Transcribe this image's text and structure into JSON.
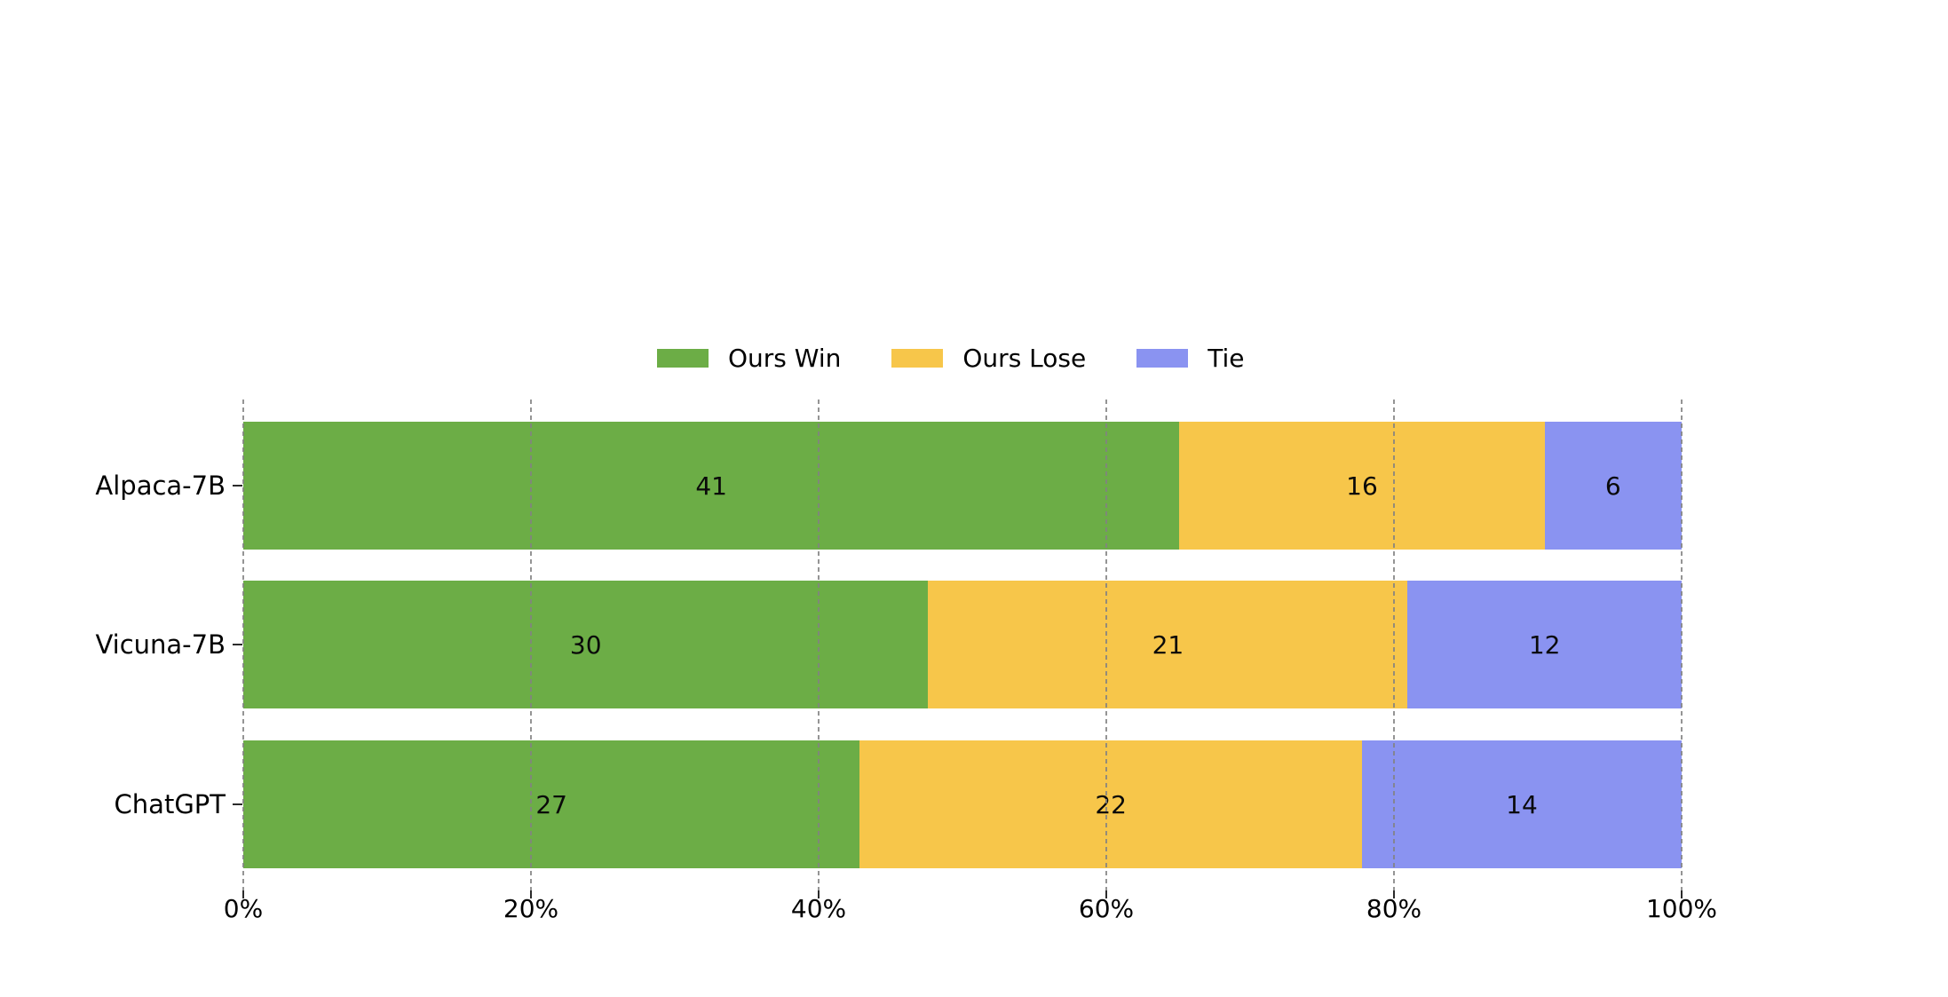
{
  "chart_data": {
    "type": "bar",
    "variant": "horizontal-stacked",
    "title": "",
    "categories": [
      "Alpaca-7B",
      "Vicuna-7B",
      "ChatGPT"
    ],
    "series": [
      {
        "name": "Ours Win",
        "color": "#6cad46",
        "values": [
          41,
          30,
          27
        ]
      },
      {
        "name": "Ours Lose",
        "color": "#f7c64a",
        "values": [
          16,
          21,
          22
        ]
      },
      {
        "name": "Tie",
        "color": "#8a93f1",
        "values": [
          6,
          12,
          14
        ]
      }
    ],
    "x_tick_labels": [
      "0%",
      "20%",
      "40%",
      "60%",
      "80%",
      "100%"
    ],
    "x_tick_percents": [
      0,
      20,
      40,
      60,
      80,
      100
    ],
    "xlim": [
      0,
      100
    ],
    "values_normalized_to_percent_of_row_total": true,
    "grid": "vertical dashed gray, drawn over bars",
    "legend_position": "top center, no frame",
    "colors": {
      "grid": "#828282",
      "text": "#000000",
      "background": "#ffffff"
    }
  }
}
